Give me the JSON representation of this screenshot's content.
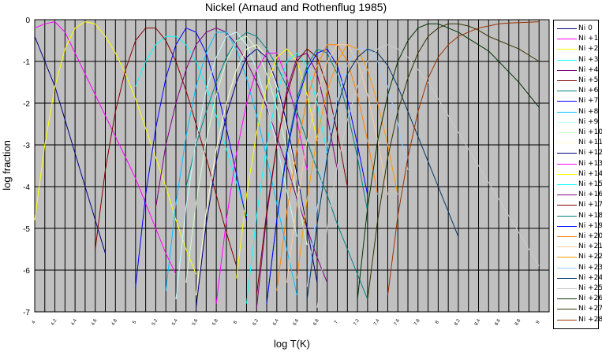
{
  "chart_data": {
    "type": "line",
    "title": "Nickel  (Arnaud and Rothenflug 1985)",
    "xlabel": "log T(K)",
    "ylabel": "log fraction",
    "xlim": [
      4,
      9.1
    ],
    "ylim": [
      -7,
      0
    ],
    "grid": true,
    "legend_position": "right",
    "x_tick_labels": [
      "4",
      "4.2",
      "4.4",
      "4.6",
      "4.8",
      "5",
      "5.2",
      "5.4",
      "5.6",
      "5.8",
      "6",
      "6.2",
      "6.4",
      "6.6",
      "6.8",
      "7",
      "7.2",
      "7.4",
      "7.6",
      "7.8",
      "8",
      "8.2",
      "8.4",
      "8.6",
      "8.8",
      "9"
    ],
    "y_tick_labels": [
      "0",
      "-1",
      "-2",
      "-3",
      "-4",
      "-5",
      "-6",
      "-7"
    ],
    "series": [
      {
        "name": "Ni  0",
        "color": "#000080",
        "x": [
          4.0,
          4.1,
          4.2,
          4.3,
          4.4,
          4.5,
          4.6,
          4.7
        ],
        "y": [
          -0.4,
          -1.0,
          -1.6,
          -2.4,
          -3.2,
          -4.0,
          -4.8,
          -5.6
        ]
      },
      {
        "name": "Ni +1",
        "color": "#ff00ff",
        "x": [
          4.0,
          4.1,
          4.2,
          4.3,
          4.4,
          4.5,
          4.6,
          4.7,
          4.8,
          4.9,
          5.0,
          5.1,
          5.2,
          5.3,
          5.4
        ],
        "y": [
          -0.2,
          -0.1,
          -0.05,
          -0.3,
          -0.8,
          -1.3,
          -1.8,
          -2.3,
          -2.8,
          -3.3,
          -3.8,
          -4.4,
          -5.0,
          -5.6,
          -6.1
        ]
      },
      {
        "name": "Ni +2",
        "color": "#ffff00",
        "x": [
          4.0,
          4.1,
          4.2,
          4.3,
          4.4,
          4.5,
          4.6,
          4.7,
          4.8,
          4.9,
          5.0,
          5.1,
          5.2,
          5.3,
          5.4,
          5.5,
          5.6
        ],
        "y": [
          -4.8,
          -3.0,
          -1.6,
          -0.7,
          -0.2,
          -0.05,
          -0.1,
          -0.4,
          -0.8,
          -1.3,
          -1.9,
          -2.6,
          -3.3,
          -4.0,
          -4.8,
          -5.5,
          -6.1
        ]
      },
      {
        "name": "Ni +3",
        "color": "#00ffff",
        "x": [
          5.0,
          5.1,
          5.2,
          5.3,
          5.4,
          5.5,
          5.6,
          5.7,
          5.8,
          5.9,
          6.0,
          6.1
        ],
        "y": [
          -1.6,
          -1.0,
          -0.6,
          -0.4,
          -0.4,
          -0.6,
          -1.0,
          -1.6,
          -2.3,
          -3.1,
          -3.9,
          -4.7
        ]
      },
      {
        "name": "Ni +4",
        "color": "#800080",
        "x": [
          5.2,
          5.3,
          5.4,
          5.5,
          5.6,
          5.7,
          5.8,
          5.9,
          6.0,
          6.1,
          6.2,
          6.3,
          6.4,
          6.5,
          6.6,
          6.7,
          6.8,
          6.9
        ],
        "y": [
          -4.5,
          -3.0,
          -2.0,
          -1.2,
          -0.6,
          -0.3,
          -0.2,
          -0.3,
          -0.6,
          -1.0,
          -1.5,
          -2.1,
          -2.8,
          -3.5,
          -4.3,
          -5.0,
          -5.7,
          -6.3
        ]
      },
      {
        "name": "Ni +5",
        "color": "#800000",
        "x": [
          4.6,
          4.7,
          4.8,
          4.9,
          5.0,
          5.1,
          5.2,
          5.3,
          5.4,
          5.5,
          5.6,
          5.7,
          5.8,
          5.9,
          6.0
        ],
        "y": [
          -5.5,
          -3.6,
          -2.2,
          -1.2,
          -0.5,
          -0.2,
          -0.2,
          -0.5,
          -1.0,
          -1.7,
          -2.5,
          -3.3,
          -4.2,
          -5.1,
          -5.9
        ]
      },
      {
        "name": "Ni +6",
        "color": "#008080",
        "x": [
          5.5,
          5.6,
          5.7,
          5.8,
          5.9,
          6.0,
          6.1,
          6.2,
          6.3,
          6.4,
          6.5,
          6.6,
          6.7,
          6.8,
          6.9,
          7.0,
          7.1,
          7.2,
          7.3
        ],
        "y": [
          -4.0,
          -3.0,
          -2.2,
          -1.5,
          -0.9,
          -0.5,
          -0.3,
          -0.4,
          -0.7,
          -1.1,
          -1.6,
          -2.2,
          -2.9,
          -3.6,
          -4.2,
          -4.9,
          -5.5,
          -6.1,
          -6.7
        ]
      },
      {
        "name": "Ni +7",
        "color": "#0000ff",
        "x": [
          5.0,
          5.1,
          5.2,
          5.3,
          5.4,
          5.5,
          5.6,
          5.7,
          5.8,
          5.9,
          6.0,
          6.1
        ],
        "y": [
          -6.4,
          -4.2,
          -2.6,
          -1.4,
          -0.6,
          -0.2,
          -0.3,
          -0.8,
          -1.6,
          -2.6,
          -3.7,
          -4.8
        ]
      },
      {
        "name": "Ni +8",
        "color": "#00c0ff",
        "x": [
          5.3,
          5.4,
          5.5,
          5.6,
          5.7,
          5.8,
          5.9,
          6.0,
          6.1,
          6.2,
          6.3,
          6.4,
          6.5,
          6.6
        ],
        "y": [
          -6.5,
          -4.4,
          -2.8,
          -1.6,
          -0.8,
          -0.3,
          -0.3,
          -0.7,
          -1.4,
          -2.3,
          -3.3,
          -4.4,
          -5.5,
          -6.6
        ]
      },
      {
        "name": "Ni +9",
        "color": "#c0ffff",
        "x": [
          5.4,
          5.5,
          5.6,
          5.7,
          5.8,
          5.9,
          6.0,
          6.1,
          6.2,
          6.3,
          6.4,
          6.5,
          6.6
        ],
        "y": [
          -6.7,
          -4.5,
          -2.9,
          -1.7,
          -0.9,
          -0.4,
          -0.3,
          -0.6,
          -1.2,
          -2.0,
          -3.0,
          -4.1,
          -5.2
        ]
      },
      {
        "name": "Ni +10",
        "color": "#ccffcc",
        "x": [
          5.5,
          5.6,
          5.7,
          5.8,
          5.9,
          6.0,
          6.1,
          6.2,
          6.3,
          6.4,
          6.5,
          6.6,
          6.7
        ],
        "y": [
          -6.3,
          -4.4,
          -2.9,
          -1.8,
          -1.0,
          -0.5,
          -0.4,
          -0.7,
          -1.3,
          -2.1,
          -3.1,
          -4.2,
          -5.4
        ]
      },
      {
        "name": "Ni +11",
        "color": "#ffffcc",
        "x": [
          5.6,
          5.7,
          5.8,
          5.9,
          6.0,
          6.1,
          6.2,
          6.3,
          6.4,
          6.5,
          6.6,
          6.7
        ],
        "y": [
          -6.6,
          -4.6,
          -3.1,
          -2.0,
          -1.2,
          -0.7,
          -0.6,
          -0.9,
          -1.6,
          -2.6,
          -3.8,
          -5.0
        ]
      },
      {
        "name": "Ni +12",
        "color": "#000080",
        "x": [
          5.6,
          5.7,
          5.8,
          5.9,
          6.0,
          6.1,
          6.2,
          6.3,
          6.4,
          6.5,
          6.6,
          6.7,
          6.8
        ],
        "y": [
          -6.9,
          -4.9,
          -3.4,
          -2.3,
          -1.5,
          -0.9,
          -0.7,
          -0.9,
          -1.5,
          -2.5,
          -3.7,
          -5.0,
          -6.3
        ]
      },
      {
        "name": "Ni +13",
        "color": "#ff00ff",
        "x": [
          5.8,
          5.9,
          6.0,
          6.1,
          6.2,
          6.3,
          6.4,
          6.5,
          6.6,
          6.7
        ],
        "y": [
          -6.8,
          -4.8,
          -3.2,
          -2.0,
          -1.2,
          -0.8,
          -0.8,
          -1.4,
          -2.4,
          -3.6
        ]
      },
      {
        "name": "Ni +14",
        "color": "#ffff00",
        "x": [
          6.0,
          6.1,
          6.2,
          6.3,
          6.4,
          6.5,
          6.6,
          6.7,
          6.8
        ],
        "y": [
          -6.2,
          -4.2,
          -2.7,
          -1.6,
          -0.9,
          -0.7,
          -1.0,
          -1.8,
          -2.9
        ]
      },
      {
        "name": "Ni +15",
        "color": "#00ffff",
        "x": [
          6.1,
          6.2,
          6.3,
          6.4,
          6.5,
          6.6,
          6.7,
          6.8,
          6.9
        ],
        "y": [
          -6.8,
          -4.7,
          -3.0,
          -1.8,
          -1.0,
          -0.8,
          -1.1,
          -2.0,
          -3.2
        ]
      },
      {
        "name": "Ni +16",
        "color": "#800080",
        "x": [
          6.2,
          6.3,
          6.4,
          6.5,
          6.6,
          6.7,
          6.8,
          6.9,
          7.0
        ],
        "y": [
          -6.9,
          -4.7,
          -3.0,
          -1.7,
          -0.9,
          -0.8,
          -1.3,
          -2.3,
          -3.6
        ]
      },
      {
        "name": "Ni +17",
        "color": "#800000",
        "x": [
          6.2,
          6.3,
          6.4,
          6.5,
          6.6,
          6.7,
          6.8,
          6.9,
          7.0,
          7.1
        ],
        "y": [
          -6.6,
          -4.6,
          -3.0,
          -1.8,
          -1.0,
          -0.7,
          -0.9,
          -1.6,
          -2.7,
          -4.0
        ]
      },
      {
        "name": "Ni +18",
        "color": "#008080",
        "x": [
          6.3,
          6.4,
          6.5,
          6.6,
          6.7,
          6.8,
          6.9,
          7.0,
          7.1,
          7.2,
          7.3
        ],
        "y": [
          -6.8,
          -4.8,
          -3.1,
          -1.9,
          -1.1,
          -0.7,
          -0.8,
          -1.3,
          -2.2,
          -3.3,
          -4.6
        ]
      },
      {
        "name": "Ni +19",
        "color": "#0000ff",
        "x": [
          6.3,
          6.4,
          6.5,
          6.6,
          6.7,
          6.8,
          6.9,
          7.0,
          7.1,
          7.2,
          7.3
        ],
        "y": [
          -6.8,
          -4.8,
          -3.2,
          -2.0,
          -1.2,
          -0.8,
          -0.7,
          -1.1,
          -1.9,
          -3.0,
          -4.2
        ]
      },
      {
        "name": "Ni +20",
        "color": "#ff8000",
        "x": [
          6.4,
          6.5,
          6.6,
          6.7,
          6.8,
          6.9,
          7.0,
          7.1,
          7.2,
          7.3,
          7.4
        ],
        "y": [
          -6.5,
          -4.6,
          -3.1,
          -1.9,
          -1.1,
          -0.6,
          -0.6,
          -1.0,
          -1.8,
          -2.9,
          -4.2
        ]
      },
      {
        "name": "Ni +21",
        "color": "#ffcc99",
        "x": [
          6.5,
          6.6,
          6.7,
          6.8,
          6.9,
          7.0,
          7.1,
          7.2,
          7.3,
          7.4,
          7.5
        ],
        "y": [
          -6.3,
          -4.4,
          -2.9,
          -1.8,
          -1.0,
          -0.6,
          -0.6,
          -1.0,
          -1.8,
          -2.9,
          -4.2
        ]
      },
      {
        "name": "Ni +22",
        "color": "#ff9900",
        "x": [
          6.6,
          6.7,
          6.8,
          6.9,
          7.0,
          7.1,
          7.2,
          7.3,
          7.4,
          7.5,
          7.6
        ],
        "y": [
          -6.2,
          -4.3,
          -2.8,
          -1.7,
          -1.0,
          -0.6,
          -0.7,
          -1.2,
          -2.0,
          -3.0,
          -4.2
        ]
      },
      {
        "name": "Ni +23",
        "color": "#99ccff",
        "x": [
          6.7,
          6.8,
          6.9,
          7.0,
          7.1,
          7.2,
          7.3,
          7.4,
          7.5,
          7.6,
          7.7
        ],
        "y": [
          -6.4,
          -4.5,
          -3.0,
          -1.9,
          -1.1,
          -0.7,
          -0.7,
          -1.0,
          -1.6,
          -2.5,
          -3.6
        ]
      },
      {
        "name": "Ni +24",
        "color": "#003366",
        "x": [
          6.7,
          6.8,
          6.9,
          7.0,
          7.1,
          7.2,
          7.3,
          7.4,
          7.5,
          7.6,
          7.7,
          7.8,
          7.9,
          8.0,
          8.1,
          8.2
        ],
        "y": [
          -6.7,
          -4.9,
          -3.3,
          -2.1,
          -1.3,
          -0.9,
          -0.7,
          -0.8,
          -1.1,
          -1.6,
          -2.2,
          -2.8,
          -3.4,
          -4.0,
          -4.6,
          -5.2
        ]
      },
      {
        "name": "Ni +25",
        "color": "#cccccc",
        "x": [
          6.8,
          6.9,
          7.0,
          7.1,
          7.2,
          7.3,
          7.4,
          7.5,
          7.6,
          7.7,
          7.8,
          7.9,
          8.0,
          8.1,
          8.2,
          8.3,
          8.4,
          8.5,
          8.6,
          8.7,
          8.8,
          8.9,
          9.0
        ],
        "y": [
          -6.9,
          -5.0,
          -3.5,
          -2.4,
          -1.6,
          -1.0,
          -0.7,
          -0.6,
          -0.7,
          -0.9,
          -1.2,
          -1.5,
          -1.9,
          -2.3,
          -2.7,
          -3.1,
          -3.5,
          -3.9,
          -4.3,
          -4.7,
          -5.1,
          -5.5,
          -5.9
        ]
      },
      {
        "name": "Ni +26",
        "color": "#003300",
        "x": [
          7.2,
          7.3,
          7.4,
          7.5,
          7.6,
          7.7,
          7.8,
          7.9,
          8.0,
          8.1,
          8.2,
          8.3,
          8.4,
          8.5,
          8.6,
          8.7,
          8.8,
          8.9,
          9.0
        ],
        "y": [
          -6.7,
          -4.5,
          -2.9,
          -1.8,
          -1.0,
          -0.5,
          -0.2,
          -0.1,
          -0.1,
          -0.2,
          -0.3,
          -0.45,
          -0.6,
          -0.75,
          -1.0,
          -1.25,
          -1.5,
          -1.8,
          -2.1
        ]
      },
      {
        "name": "Ni +27",
        "color": "#333300",
        "x": [
          7.3,
          7.4,
          7.5,
          7.6,
          7.7,
          7.8,
          7.9,
          8.0,
          8.1,
          8.2,
          8.3,
          8.4,
          8.5,
          8.6,
          8.7,
          8.8,
          8.9,
          9.0
        ],
        "y": [
          -6.7,
          -4.8,
          -3.3,
          -2.2,
          -1.4,
          -0.8,
          -0.4,
          -0.2,
          -0.1,
          -0.1,
          -0.15,
          -0.25,
          -0.4,
          -0.5,
          -0.6,
          -0.7,
          -0.85,
          -1.0
        ]
      },
      {
        "name": "Ni +28",
        "color": "#993300",
        "x": [
          7.5,
          7.6,
          7.7,
          7.8,
          7.9,
          8.0,
          8.1,
          8.2,
          8.3,
          8.4,
          8.5,
          8.6,
          8.7,
          8.8,
          8.9,
          9.0
        ],
        "y": [
          -6.6,
          -4.7,
          -3.3,
          -2.2,
          -1.4,
          -0.9,
          -0.6,
          -0.4,
          -0.3,
          -0.2,
          -0.15,
          -0.1,
          -0.08,
          -0.07,
          -0.06,
          -0.05
        ]
      }
    ]
  }
}
